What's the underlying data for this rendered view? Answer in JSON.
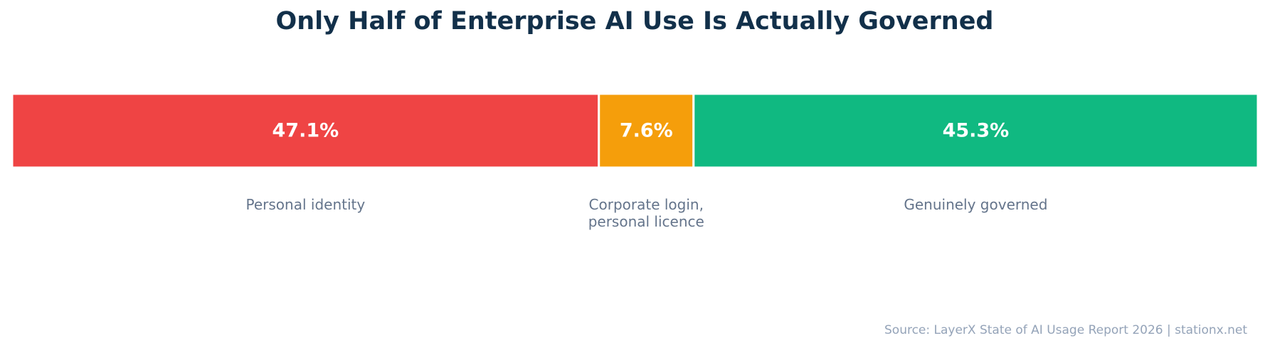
{
  "chart_data": {
    "type": "stacked_bar",
    "title": "Only Half of Enterprise AI Use Is Actually Governed",
    "categories": [
      "Personal identity",
      "Corporate login,\npersonal licence",
      "Genuinely governed"
    ],
    "values": [
      47.1,
      7.6,
      45.3
    ],
    "value_labels": [
      "47.1%",
      "7.6%",
      "45.3%"
    ],
    "colors": [
      "#ef4444",
      "#f59e0b",
      "#10b981"
    ],
    "source": "Source: LayerX State of AI Usage Report 2026 | stationx.net"
  }
}
